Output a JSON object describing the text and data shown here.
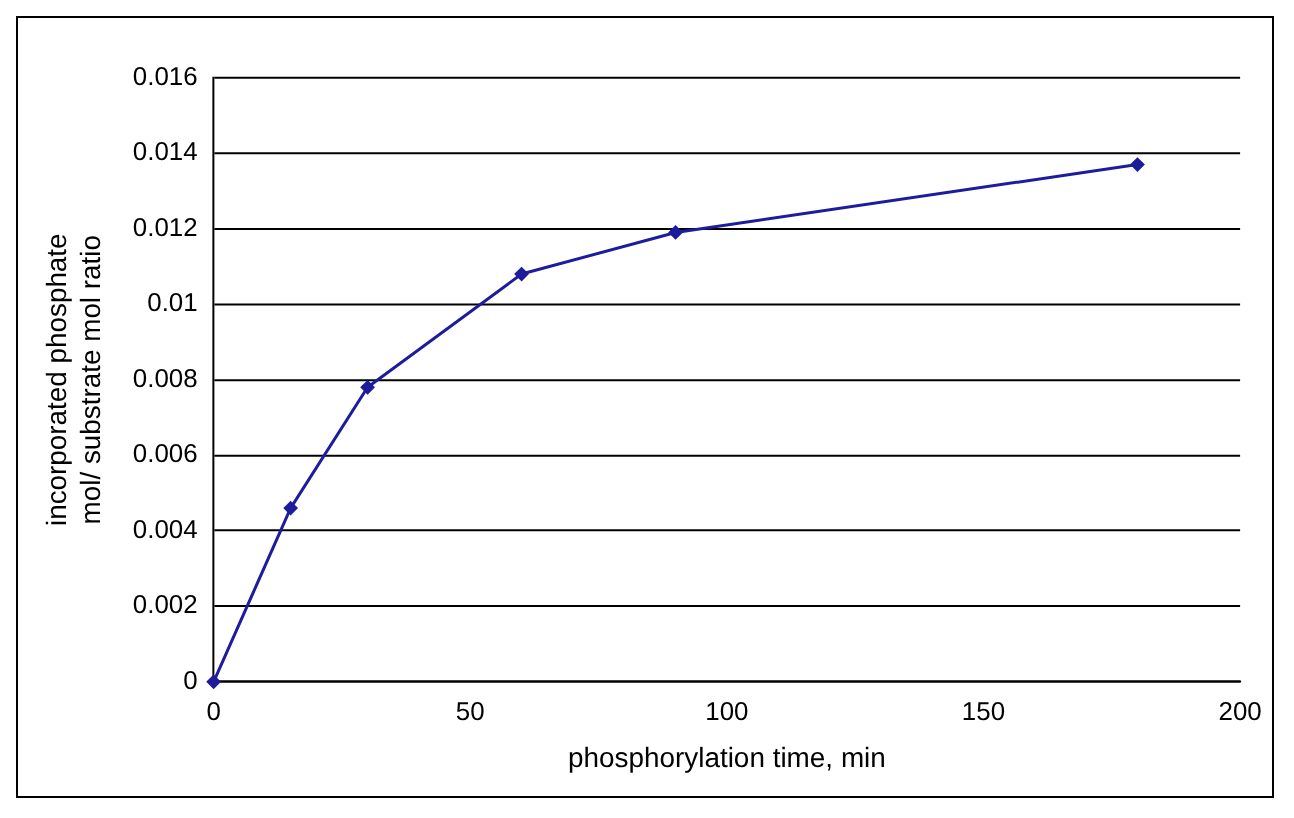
{
  "chart_data": {
    "type": "line",
    "xlabel": "phosphorylation time, min",
    "ylabel": "incorporated phosphate mol/ substrate mol ratio",
    "x": [
      0,
      15,
      30,
      60,
      90,
      180
    ],
    "series": [
      {
        "color": "#1c1c9c",
        "values": [
          0,
          0.0046,
          0.0078,
          0.0108,
          0.0119,
          0.0137
        ]
      }
    ],
    "xlim": [
      0,
      200
    ],
    "xticks": [
      0,
      50,
      100,
      150,
      200
    ],
    "ylim": [
      0,
      0.016
    ],
    "yticks": [
      0,
      0.002,
      0.004,
      0.006,
      0.008,
      0.01,
      0.012,
      0.014,
      0.016
    ],
    "grid": "y",
    "legend": false,
    "marker": "diamond",
    "line_style": "solid"
  }
}
